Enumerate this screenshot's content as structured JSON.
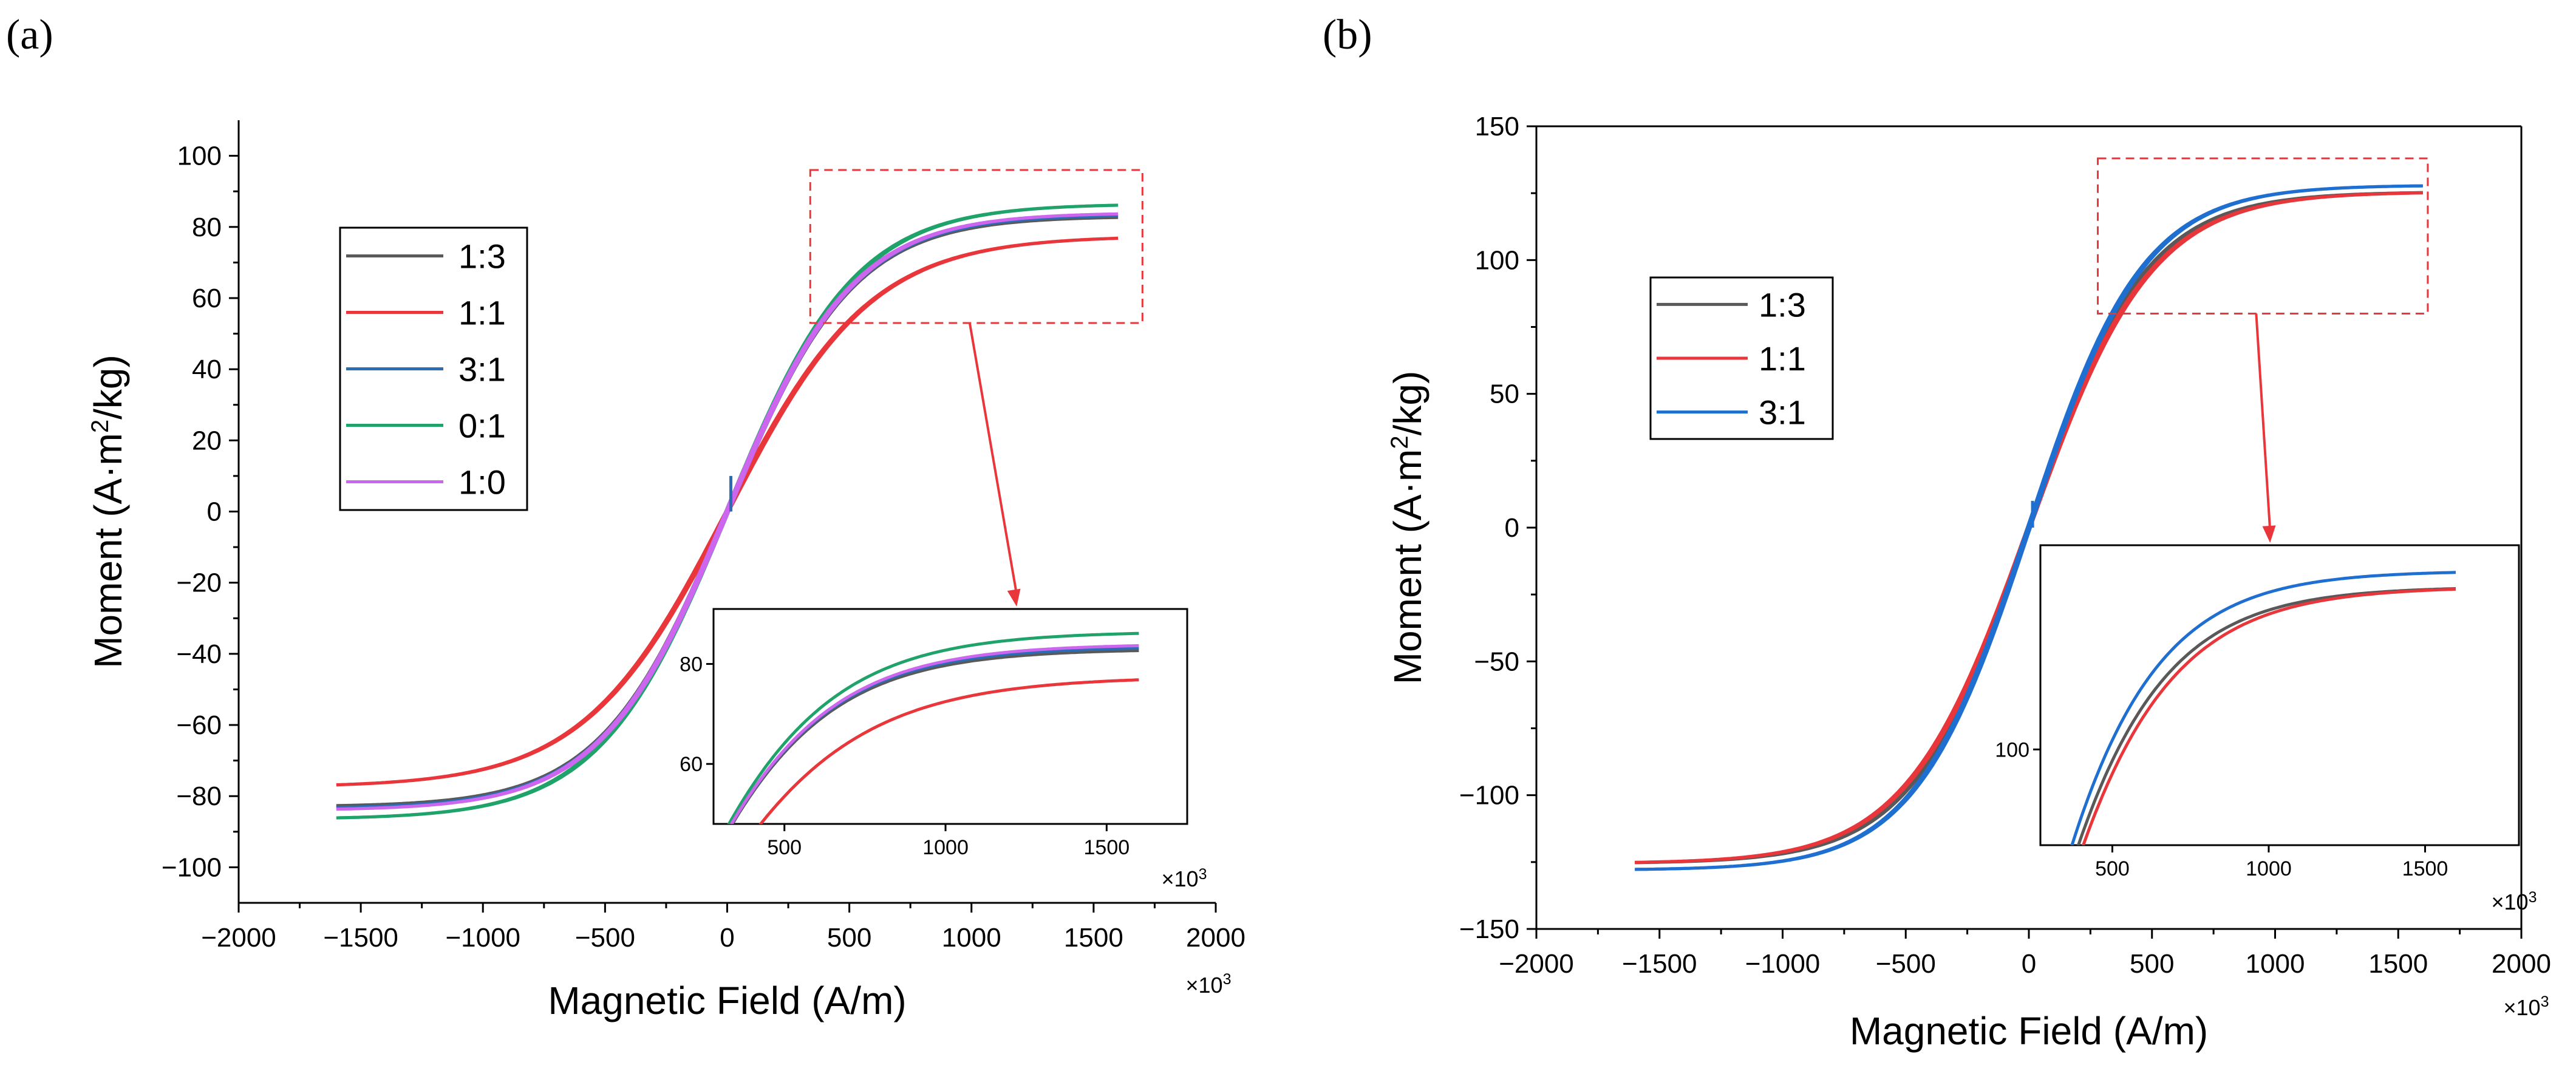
{
  "chart_data": [
    {
      "panel": "(a)",
      "type": "line",
      "xlabel": "Magnetic Field (A/m)",
      "ylabel_main": "Moment (A·m",
      "ylabel_sup": "2",
      "ylabel_tail": "/kg)",
      "x_multiplier": "×10",
      "x_multiplier_exp": "3",
      "xlim": [
        -2000,
        2000
      ],
      "ylim": [
        -110,
        110
      ],
      "xticks": [
        -2000,
        -1500,
        -1000,
        -500,
        0,
        500,
        1000,
        1500,
        2000
      ],
      "xtick_labels": [
        "−2000",
        "−1500",
        "−1000",
        "−500",
        "0",
        "500",
        "1000",
        "1500",
        "2000"
      ],
      "yticks": [
        -100,
        -80,
        -60,
        -40,
        -20,
        0,
        20,
        40,
        60,
        80,
        100
      ],
      "ytick_labels": [
        "−100",
        "−80",
        "−60",
        "−40",
        "−20",
        "0",
        "20",
        "40",
        "60",
        "80",
        "100"
      ],
      "series": [
        {
          "name": "1:3",
          "color": "#595959",
          "Ms": 83,
          "k": 1.35
        },
        {
          "name": "1:1",
          "color": "#e8363b",
          "Ms": 77.5,
          "k": 1.55
        },
        {
          "name": "3:1",
          "color": "#2a6db5",
          "Ms": 83.5,
          "k": 1.35
        },
        {
          "name": "0:1",
          "color": "#1fa36a",
          "Ms": 86.5,
          "k": 1.38
        },
        {
          "name": "1:0",
          "color": "#cc66ee",
          "Ms": 84,
          "k": 1.36
        }
      ],
      "x_range_data": [
        -1600,
        1600
      ],
      "zoom_box": {
        "x": [
          340,
          1700
        ],
        "y": [
          53,
          96
        ]
      },
      "inset": {
        "xlim": [
          280,
          1750
        ],
        "ylim": [
          48,
          91
        ],
        "xticks": [
          500,
          1000,
          1500
        ],
        "xtick_labels": [
          "500",
          "1000",
          "1500"
        ],
        "yticks": [
          60,
          80
        ],
        "ytick_labels": [
          "60",
          "80"
        ],
        "x_multiplier": "×10",
        "x_multiplier_exp": "3"
      }
    },
    {
      "panel": "(b)",
      "type": "line",
      "xlabel": "Magnetic Field (A/m)",
      "ylabel_main": "Moment (A·m",
      "ylabel_sup": "2",
      "ylabel_tail": "/kg)",
      "x_multiplier": "×10",
      "x_multiplier_exp": "3",
      "xlim": [
        -2000,
        2000
      ],
      "ylim": [
        -150,
        150
      ],
      "xticks": [
        -2000,
        -1500,
        -1000,
        -500,
        0,
        500,
        1000,
        1500,
        2000
      ],
      "xtick_labels": [
        "−2000",
        "−1500",
        "−1000",
        "−500",
        "0",
        "500",
        "1000",
        "1500",
        "2000"
      ],
      "yticks": [
        -150,
        -100,
        -50,
        0,
        50,
        100,
        150
      ],
      "ytick_labels": [
        "−150",
        "−100",
        "−50",
        "0",
        "50",
        "100",
        "150"
      ],
      "series": [
        {
          "name": "1:3",
          "color": "#595959",
          "Ms": 125.5,
          "k": 1.25
        },
        {
          "name": "1:1",
          "color": "#e8363b",
          "Ms": 125.5,
          "k": 1.3
        },
        {
          "name": "3:1",
          "color": "#1f6fd1",
          "Ms": 128,
          "k": 1.22
        }
      ],
      "x_range_data": [
        -1600,
        1600
      ],
      "zoom_box": {
        "x": [
          280,
          1620
        ],
        "y": [
          80,
          138
        ]
      },
      "inset": {
        "xlim": [
          270,
          1800
        ],
        "ylim": [
          85,
          132
        ],
        "xticks": [
          500,
          1000,
          1500
        ],
        "xtick_labels": [
          "500",
          "1000",
          "1500"
        ],
        "yticks": [
          100
        ],
        "ytick_labels": [
          "100"
        ],
        "x_multiplier": "×10",
        "x_multiplier_exp": "3"
      }
    }
  ]
}
